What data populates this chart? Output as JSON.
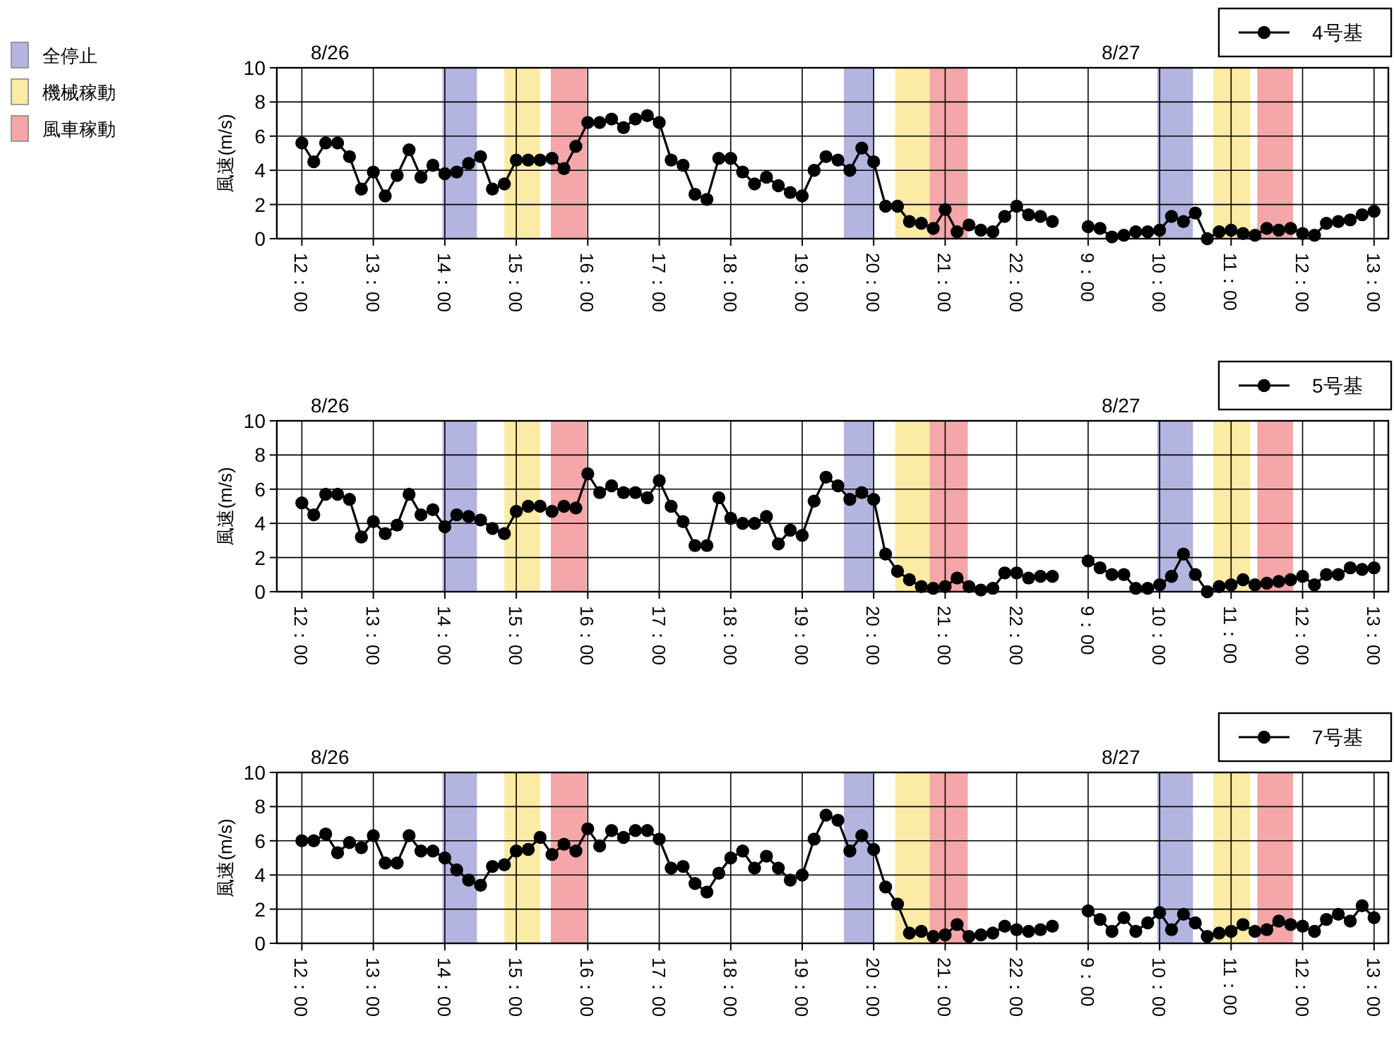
{
  "chart_data": [
    {
      "type": "line",
      "ylabel": "風速(m/s)",
      "ylim": [
        0,
        10
      ],
      "yticks": [
        0,
        2,
        4,
        6,
        8,
        10
      ],
      "categories": [
        "12：00",
        null,
        null,
        null,
        null,
        null,
        "13：00",
        null,
        null,
        null,
        null,
        null,
        "14：00",
        null,
        null,
        null,
        null,
        null,
        "15：00",
        null,
        null,
        null,
        null,
        null,
        "16：00",
        null,
        null,
        null,
        null,
        null,
        "17：00",
        null,
        null,
        null,
        null,
        null,
        "18：00",
        null,
        null,
        null,
        null,
        null,
        "19：00",
        null,
        null,
        null,
        null,
        null,
        "20：00",
        null,
        null,
        null,
        null,
        null,
        "21：00",
        null,
        null,
        null,
        null,
        null,
        "22：00",
        null,
        null,
        null,
        null,
        null,
        "9：00",
        null,
        null,
        null,
        null,
        null,
        "10：00",
        null,
        null,
        null,
        null,
        null,
        "11：00",
        null,
        null,
        null,
        null,
        null,
        "12：00",
        null,
        null,
        null,
        null,
        null,
        "13：00"
      ],
      "grid": true,
      "legend": "top right",
      "marker": "circle",
      "line_style": "solid",
      "annotations": [
        "8/26",
        "8/27",
        "全停止",
        "機械稼動",
        "風車稼動"
      ],
      "series": [
        {
          "name": "4号基",
          "color": "#000000",
          "values": [
            5.6,
            4.5,
            5.6,
            5.6,
            4.8,
            2.9,
            3.9,
            2.5,
            3.7,
            5.2,
            3.6,
            4.3,
            3.8,
            3.9,
            4.4,
            4.8,
            2.9,
            3.2,
            4.6,
            4.6,
            4.6,
            4.7,
            4.1,
            5.4,
            6.8,
            6.8,
            7.0,
            6.5,
            7.0,
            7.2,
            6.8,
            4.6,
            4.3,
            2.6,
            2.3,
            4.7,
            4.7,
            3.9,
            3.2,
            3.6,
            3.1,
            2.7,
            2.5,
            4.0,
            4.8,
            4.6,
            4.0,
            5.3,
            4.5,
            1.9,
            1.9,
            1.0,
            0.9,
            0.6,
            1.7,
            0.4,
            0.8,
            0.5,
            0.4,
            1.3,
            1.9,
            1.4,
            1.3,
            1.0,
            null,
            null,
            0.7,
            0.6,
            0.1,
            0.2,
            0.4,
            0.4,
            0.5,
            1.3,
            1.0,
            1.5,
            0.0,
            0.4,
            0.5,
            0.3,
            0.2,
            0.6,
            0.5,
            0.6,
            0.3,
            0.2,
            0.9,
            1.0,
            1.1,
            1.4,
            1.6
          ]
        }
      ]
    },
    {
      "type": "line",
      "ylabel": "風速(m/s)",
      "ylim": [
        0,
        10
      ],
      "yticks": [
        0,
        2,
        4,
        6,
        8,
        10
      ],
      "categories": [
        "12：00",
        null,
        null,
        null,
        null,
        null,
        "13：00",
        null,
        null,
        null,
        null,
        null,
        "14：00",
        null,
        null,
        null,
        null,
        null,
        "15：00",
        null,
        null,
        null,
        null,
        null,
        "16：00",
        null,
        null,
        null,
        null,
        null,
        "17：00",
        null,
        null,
        null,
        null,
        null,
        "18：00",
        null,
        null,
        null,
        null,
        null,
        "19：00",
        null,
        null,
        null,
        null,
        null,
        "20：00",
        null,
        null,
        null,
        null,
        null,
        "21：00",
        null,
        null,
        null,
        null,
        null,
        "22：00",
        null,
        null,
        null,
        null,
        null,
        "9：00",
        null,
        null,
        null,
        null,
        null,
        "10：00",
        null,
        null,
        null,
        null,
        null,
        "11：00",
        null,
        null,
        null,
        null,
        null,
        "12：00",
        null,
        null,
        null,
        null,
        null,
        "13：00"
      ],
      "grid": true,
      "legend": "top right",
      "marker": "circle",
      "line_style": "solid",
      "annotations": [
        "8/26",
        "8/27"
      ],
      "series": [
        {
          "name": "5号基",
          "color": "#000000",
          "values": [
            5.2,
            4.5,
            5.7,
            5.7,
            5.4,
            3.2,
            4.1,
            3.4,
            3.9,
            5.7,
            4.5,
            4.8,
            3.8,
            4.5,
            4.4,
            4.2,
            3.7,
            3.4,
            4.7,
            5.0,
            5.0,
            4.7,
            5.0,
            4.9,
            6.9,
            5.8,
            6.2,
            5.8,
            5.8,
            5.5,
            6.5,
            5.0,
            4.1,
            2.7,
            2.7,
            5.5,
            4.3,
            4.0,
            4.0,
            4.4,
            2.8,
            3.6,
            3.3,
            5.3,
            6.7,
            6.2,
            5.4,
            5.8,
            5.4,
            2.2,
            1.2,
            0.7,
            0.3,
            0.2,
            0.3,
            0.8,
            0.3,
            0.1,
            0.2,
            1.1,
            1.1,
            0.8,
            0.9,
            0.9,
            null,
            null,
            1.8,
            1.4,
            1.0,
            1.0,
            0.2,
            0.2,
            0.4,
            0.9,
            2.2,
            1.0,
            0.0,
            0.3,
            0.4,
            0.7,
            0.4,
            0.5,
            0.6,
            0.7,
            0.9,
            0.4,
            1.0,
            1.0,
            1.4,
            1.3,
            1.4
          ]
        }
      ]
    },
    {
      "type": "line",
      "ylabel": "風速(m/s)",
      "ylim": [
        0,
        10
      ],
      "yticks": [
        0,
        2,
        4,
        6,
        8,
        10
      ],
      "categories": [
        "12：00",
        null,
        null,
        null,
        null,
        null,
        "13：00",
        null,
        null,
        null,
        null,
        null,
        "14：00",
        null,
        null,
        null,
        null,
        null,
        "15：00",
        null,
        null,
        null,
        null,
        null,
        "16：00",
        null,
        null,
        null,
        null,
        null,
        "17：00",
        null,
        null,
        null,
        null,
        null,
        "18：00",
        null,
        null,
        null,
        null,
        null,
        "19：00",
        null,
        null,
        null,
        null,
        null,
        "20：00",
        null,
        null,
        null,
        null,
        null,
        "21：00",
        null,
        null,
        null,
        null,
        null,
        "22：00",
        null,
        null,
        null,
        null,
        null,
        "9：00",
        null,
        null,
        null,
        null,
        null,
        "10：00",
        null,
        null,
        null,
        null,
        null,
        "11：00",
        null,
        null,
        null,
        null,
        null,
        "12：00",
        null,
        null,
        null,
        null,
        null,
        "13：00"
      ],
      "grid": true,
      "legend": "top right",
      "marker": "circle",
      "line_style": "solid",
      "annotations": [
        "8/26",
        "8/27"
      ],
      "series": [
        {
          "name": "7号基",
          "color": "#000000",
          "values": [
            6.0,
            6.0,
            6.4,
            5.3,
            5.9,
            5.6,
            6.3,
            4.7,
            4.7,
            6.3,
            5.4,
            5.4,
            5.0,
            4.3,
            3.7,
            3.4,
            4.5,
            4.6,
            5.4,
            5.5,
            6.2,
            5.2,
            5.8,
            5.4,
            6.7,
            5.7,
            6.6,
            6.2,
            6.6,
            6.6,
            6.1,
            4.4,
            4.5,
            3.5,
            3.0,
            4.1,
            5.0,
            5.4,
            4.4,
            5.1,
            4.4,
            3.7,
            4.0,
            6.1,
            7.5,
            7.2,
            5.4,
            6.3,
            5.5,
            3.3,
            2.3,
            0.6,
            0.7,
            0.4,
            0.5,
            1.1,
            0.4,
            0.5,
            0.6,
            1.0,
            0.8,
            0.7,
            0.8,
            1.0,
            null,
            null,
            1.9,
            1.4,
            0.7,
            1.5,
            0.7,
            1.2,
            1.8,
            0.8,
            1.7,
            1.2,
            0.4,
            0.6,
            0.7,
            1.1,
            0.7,
            0.8,
            1.3,
            1.1,
            1.0,
            0.7,
            1.4,
            1.7,
            1.3,
            2.2,
            1.5
          ]
        }
      ]
    }
  ]
}
